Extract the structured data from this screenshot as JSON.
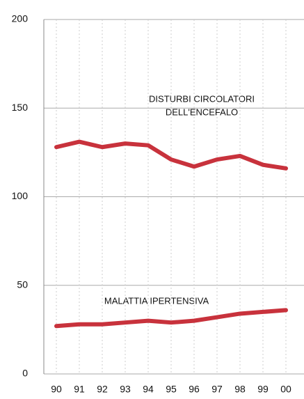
{
  "chart_data": {
    "type": "line",
    "categories": [
      "90",
      "91",
      "92",
      "93",
      "94",
      "95",
      "96",
      "97",
      "98",
      "99",
      "00"
    ],
    "series": [
      {
        "color": "#c8323c",
        "values": [
          128,
          131,
          128,
          130,
          129,
          121,
          117,
          121,
          123,
          118,
          116
        ]
      },
      {
        "color": "#c8323c",
        "values": [
          27,
          28,
          28,
          29,
          30,
          29,
          30,
          32,
          34,
          35,
          36
        ]
      }
    ],
    "annotations": [
      "DISTURBI CIRCOLATORI",
      "DELL'ENCEFALO",
      "MALATTIA IPERTENSIVA"
    ],
    "ylim": [
      0,
      200
    ],
    "yticks": [
      0,
      50,
      100,
      150,
      200
    ],
    "grid": true
  }
}
